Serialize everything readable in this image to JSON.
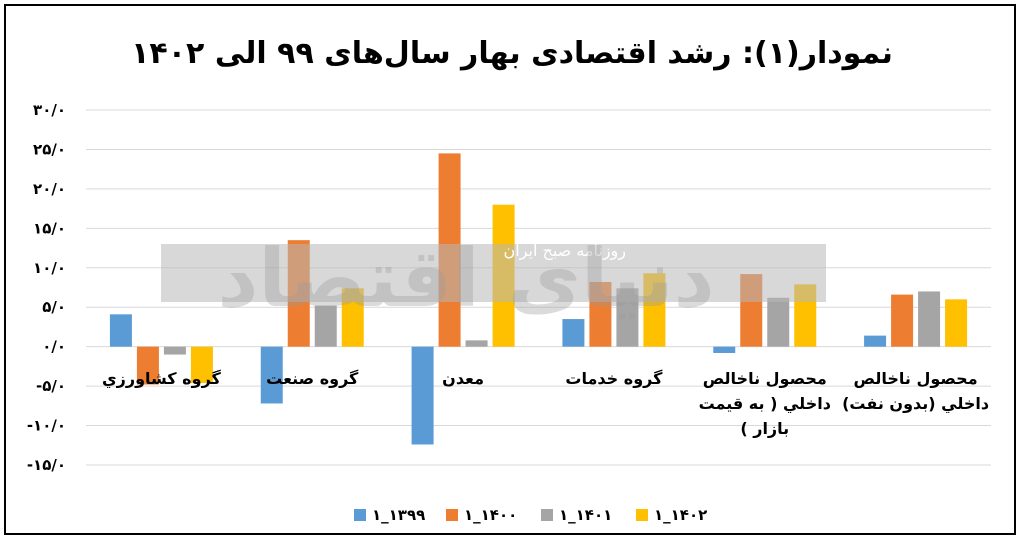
{
  "chart_data": {
    "type": "bar",
    "title": "نمودار(۱): رشد اقتصادی بهار سال‌های ۹۹ الی ۱۴۰۲",
    "categories": [
      [
        "گروه کشاورزي"
      ],
      [
        "گروه صنعت"
      ],
      [
        "معدن"
      ],
      [
        "گروه خدمات"
      ],
      [
        "محصول ناخالص",
        "داخلي ( به قيمت",
        "بازار )"
      ],
      [
        "محصول ناخالص",
        "داخلي (بدون نفت)"
      ]
    ],
    "series": [
      {
        "name": "۱_۱۳۹۹",
        "color": "#5b9bd5",
        "values": [
          4.1,
          -7.2,
          -12.4,
          3.5,
          -0.8,
          1.4
        ]
      },
      {
        "name": "۱_۱۴۰۰",
        "color": "#ed7d31",
        "values": [
          -4.8,
          13.5,
          24.5,
          8.2,
          9.2,
          6.6
        ]
      },
      {
        "name": "۱_۱۴۰۱",
        "color": "#a5a5a5",
        "values": [
          -1.0,
          5.2,
          0.8,
          7.4,
          6.2,
          7.0
        ]
      },
      {
        "name": "۱_۱۴۰۲",
        "color": "#ffc000",
        "values": [
          -4.6,
          7.4,
          18.0,
          9.3,
          7.9,
          6.0
        ]
      }
    ],
    "yticks": [
      30,
      25,
      20,
      15,
      10,
      5,
      0,
      -5,
      -10,
      -15
    ],
    "ytick_labels": [
      "۳۰/۰",
      "۲۵/۰",
      "۲۰/۰",
      "۱۵/۰",
      "۱۰/۰",
      "۵/۰",
      "۰/۰",
      "-۵/۰",
      "-۱۰/۰",
      "-۱۵/۰"
    ],
    "ylim": [
      -15,
      30
    ],
    "grid": true,
    "legend": "bottom"
  },
  "watermark": {
    "logo": "دنیای اقتصاد",
    "caption": "روزنامه صبح ایران"
  }
}
